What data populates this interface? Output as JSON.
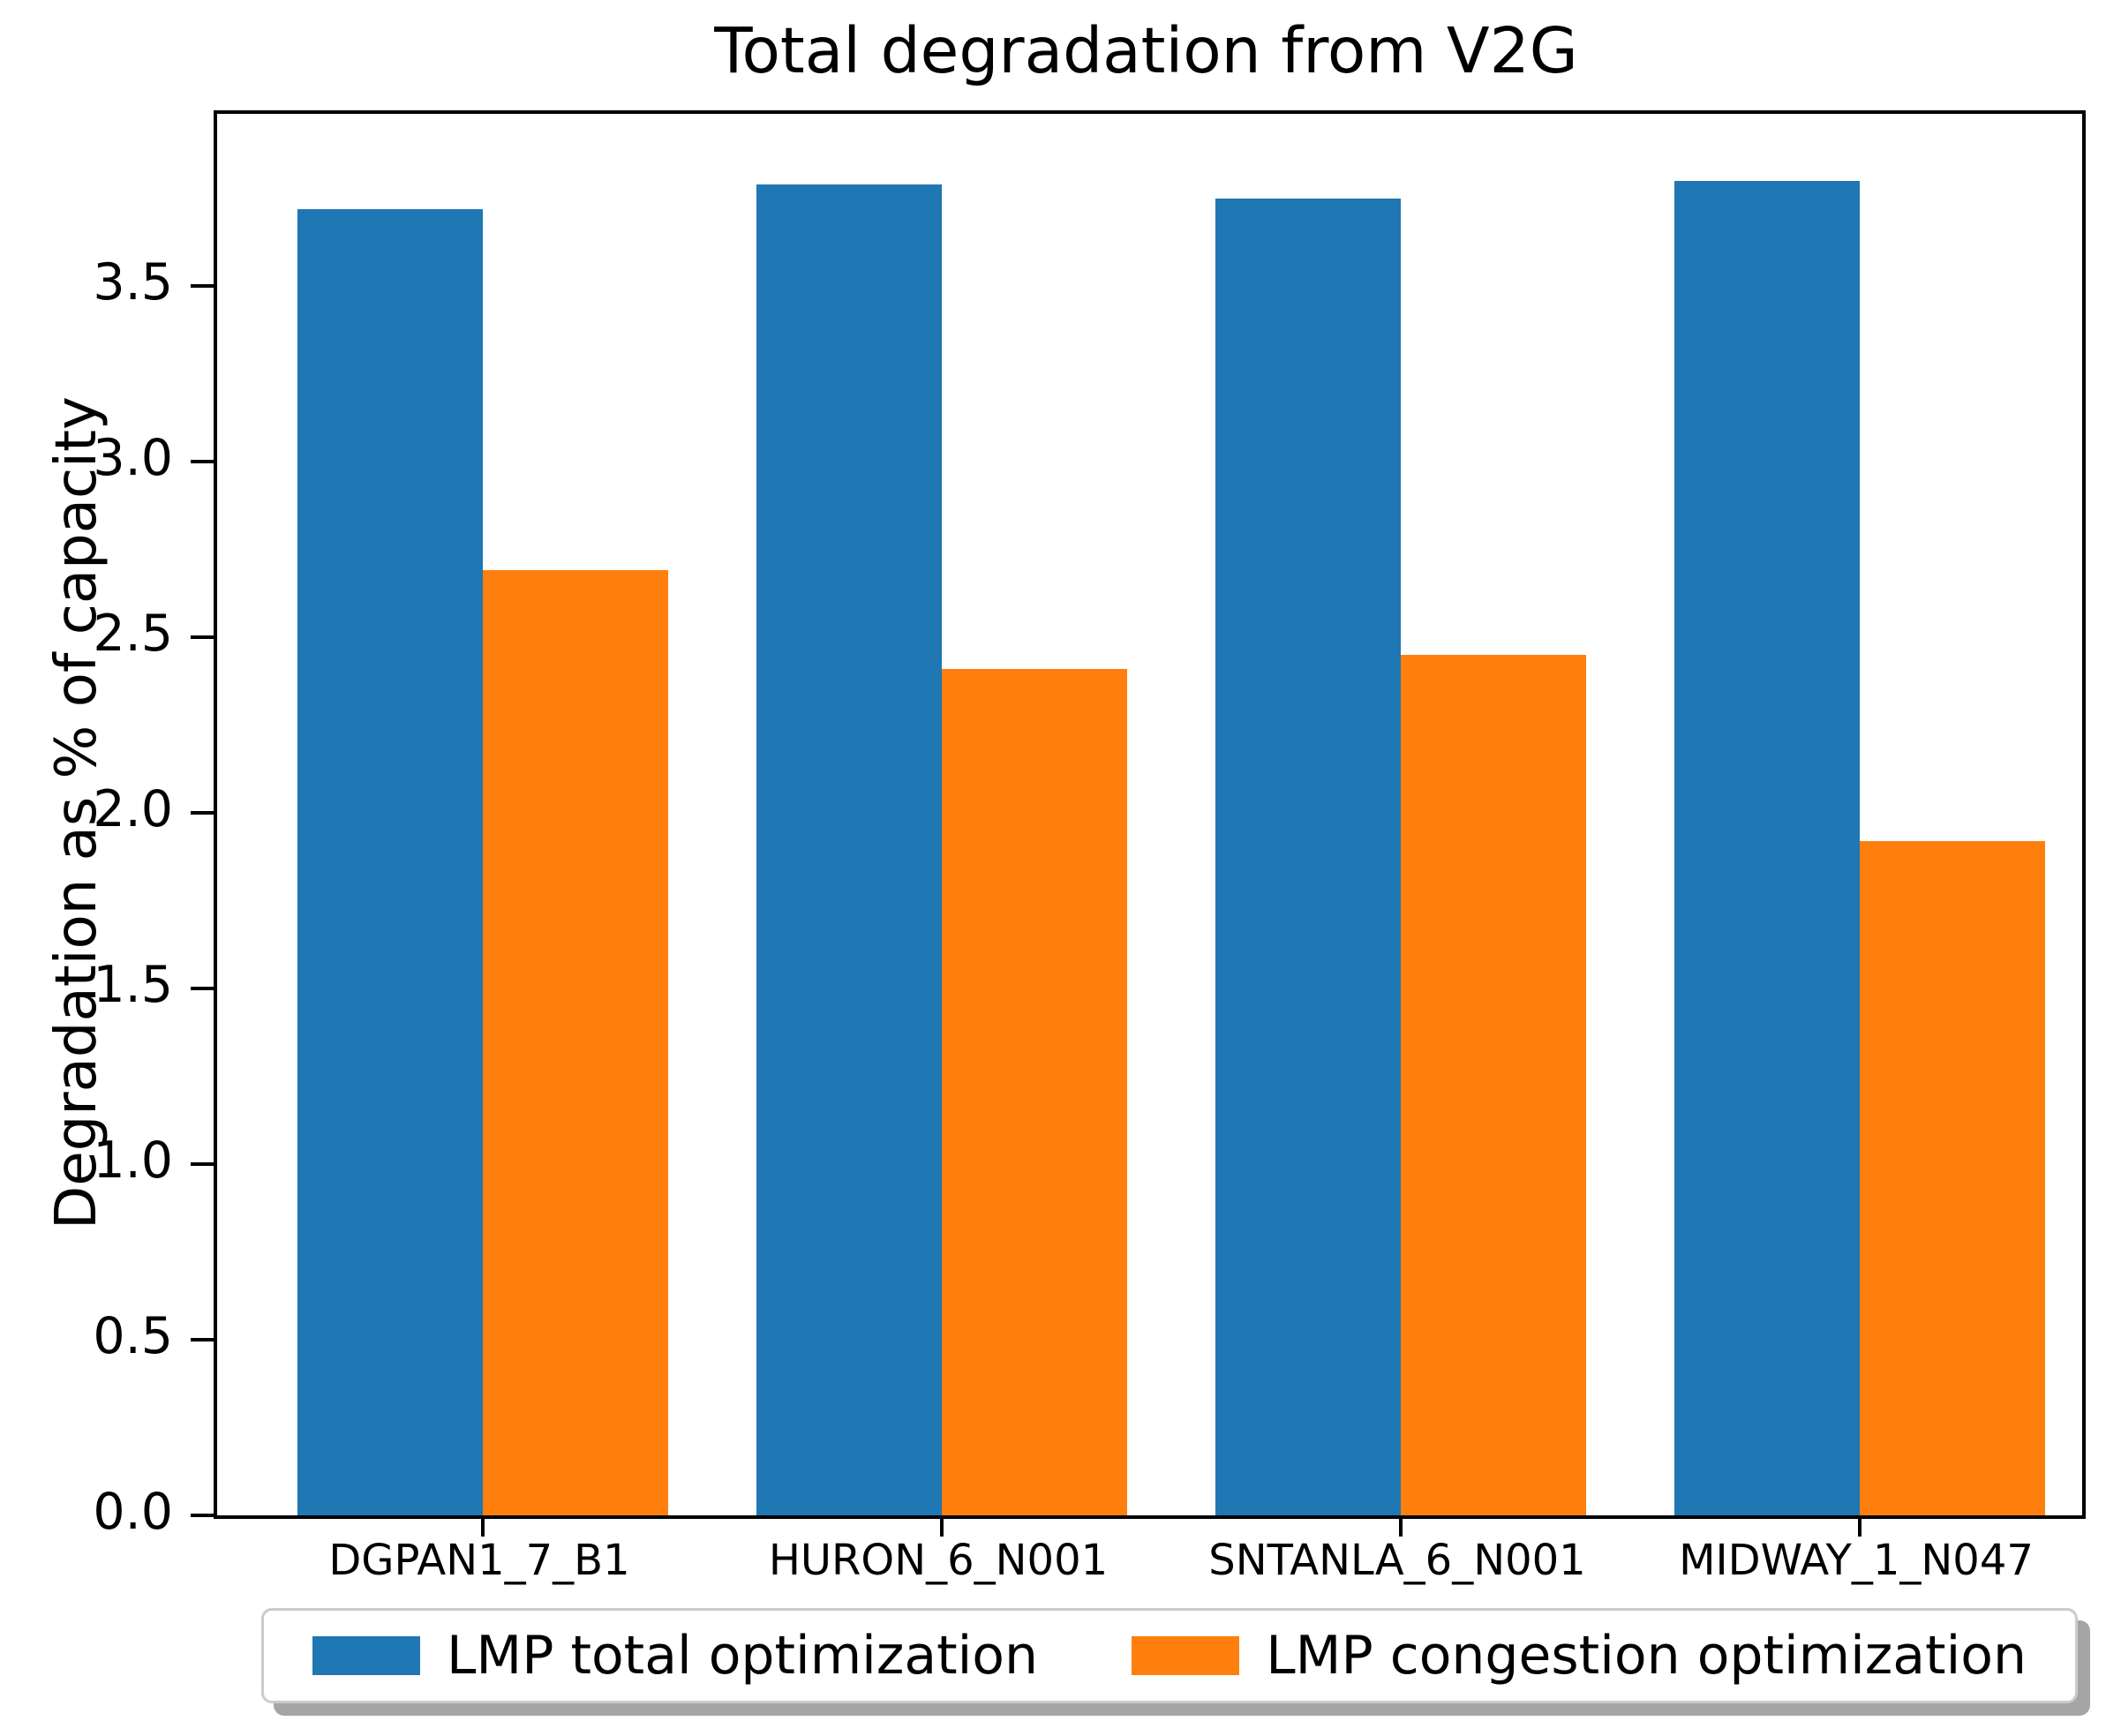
{
  "figure": {
    "title": "Total degradation from V2G",
    "ylabel": "Degradation as % of capacity"
  },
  "chart_data": {
    "type": "bar",
    "title": "Total degradation from V2G",
    "xlabel": "",
    "ylabel": "Degradation as % of capacity",
    "categories": [
      "DGPAN1_7_B1",
      "HURON_6_N001",
      "SNTANLA_6_N001",
      "MIDWAY_1_N047"
    ],
    "series": [
      {
        "name": "LMP total optimization",
        "color": "#1f77b4",
        "values": [
          3.72,
          3.79,
          3.75,
          3.8
        ]
      },
      {
        "name": "LMP congestion optimization",
        "color": "#ff7f0e",
        "values": [
          2.69,
          2.41,
          2.45,
          1.92
        ]
      }
    ],
    "ylim": [
      0,
      3.99
    ],
    "yticks": [
      0.0,
      0.5,
      1.0,
      1.5,
      2.0,
      2.5,
      3.0,
      3.5
    ],
    "ytick_labels": [
      "0.0",
      "0.5",
      "1.0",
      "1.5",
      "2.0",
      "2.5",
      "3.0",
      "3.5"
    ],
    "grid": false,
    "legend_position": "bottom-center",
    "bar_colors": {
      "blue": "#1f77b4",
      "orange": "#ff7f0e"
    }
  },
  "legend": {
    "items": [
      {
        "label": "LMP total optimization",
        "color": "#1f77b4"
      },
      {
        "label": "LMP congestion optimization",
        "color": "#ff7f0e"
      }
    ]
  }
}
